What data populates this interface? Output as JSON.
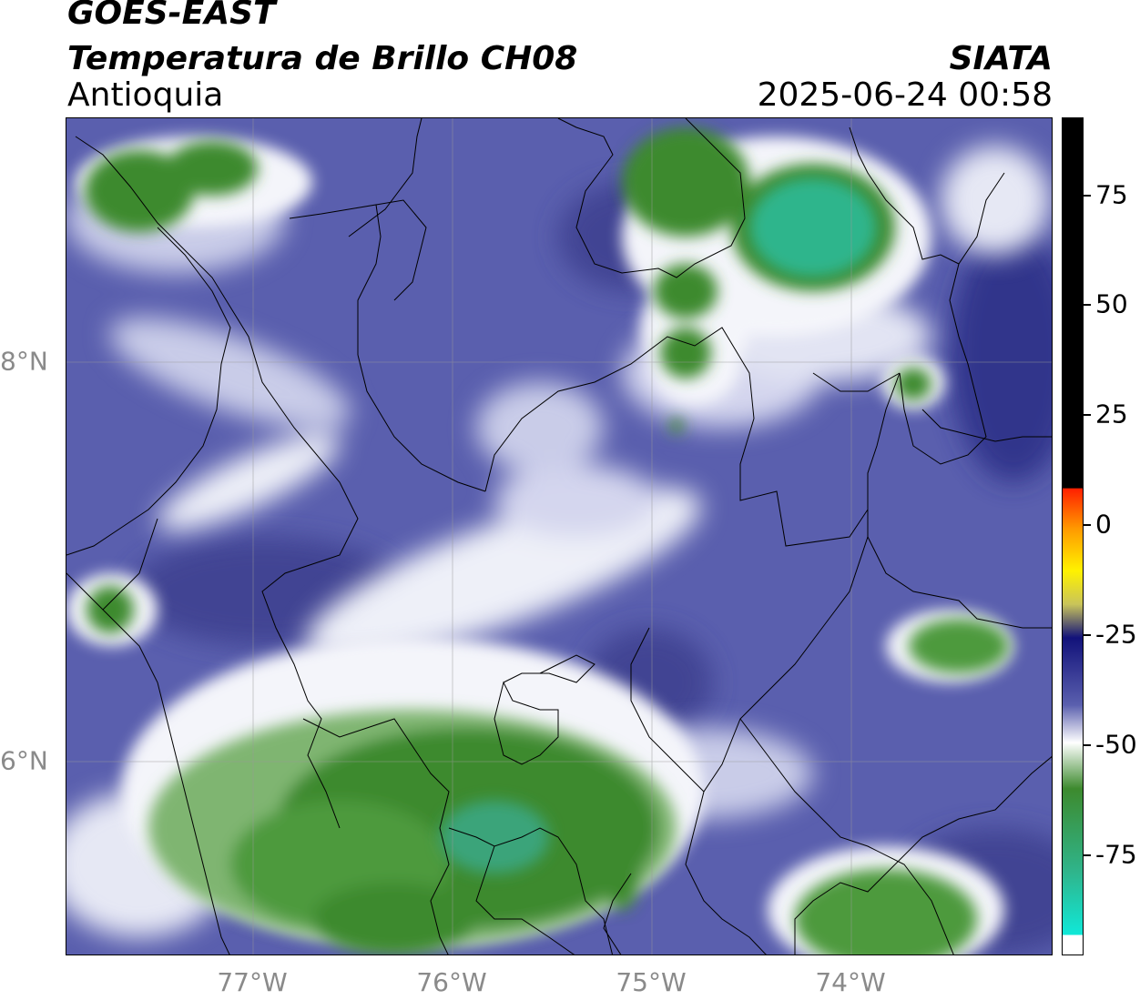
{
  "header": {
    "source": "GOES-EAST",
    "product": "Temperatura de Brillo CH08",
    "region": "Antioquia",
    "agency": "SIATA",
    "datetime": "2025-06-24 00:58"
  },
  "map": {
    "lon_labels": [
      "77°W",
      "76°W",
      "75°W",
      "74°W"
    ],
    "lat_labels": [
      "8°N",
      "6°N"
    ],
    "colors": {
      "background_blue": "#5a5fae",
      "deep_blue": "#2c2f86",
      "light_lilac": "#b9bde0",
      "white_band": "#f2f3f8",
      "green_dark": "#3d8a2e",
      "green_mid": "#4e9a3c",
      "teal": "#2fb58c",
      "boundary": "#000000"
    }
  },
  "colorbar": {
    "labels": [
      "75",
      "50",
      "25",
      "0",
      "-25",
      "-50",
      "-75"
    ],
    "colors": {
      "black": "#000000",
      "red": "#ff2000",
      "orange": "#ff9a00",
      "yellow": "#fff200",
      "navy": "#12127a",
      "blue": "#5a5fae",
      "white": "#ffffff",
      "green": "#3d8a2e",
      "cyan": "#10e8d8"
    }
  }
}
